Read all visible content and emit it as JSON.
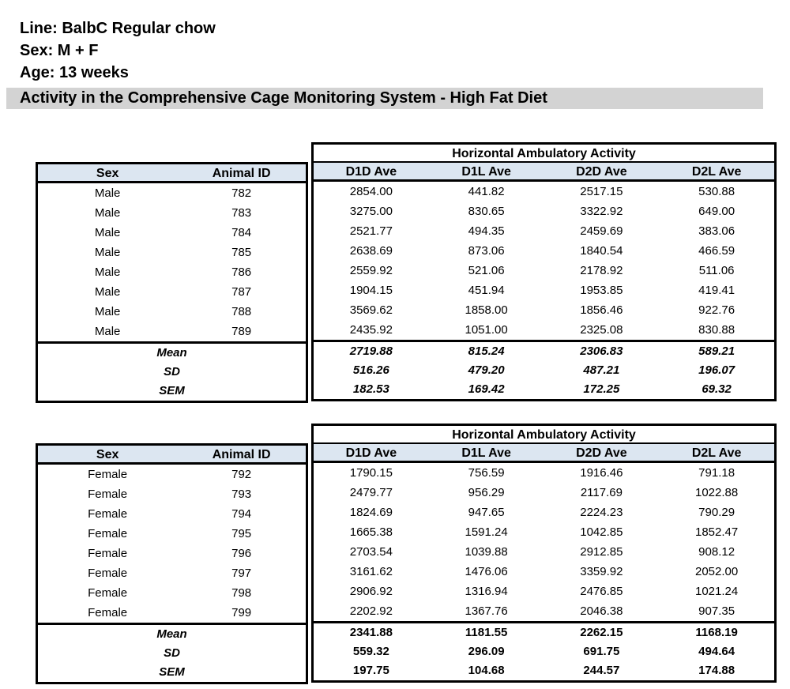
{
  "header": {
    "line": "Line: BalbC Regular chow",
    "sex": "Sex: M + F",
    "age": "Age: 13 weeks",
    "banner": "Activity in the Comprehensive Cage Monitoring System - High Fat Diet"
  },
  "colors": {
    "banner_bg": "#d3d3d3",
    "table_header_bg": "#dce6f1",
    "border": "#000000"
  },
  "tables": [
    {
      "group_header": "Horizontal Ambulatory Activity",
      "columns": [
        "Sex",
        "Animal ID",
        "D1D Ave",
        "D1L Ave",
        "D2D Ave",
        "D2L Ave"
      ],
      "rows": [
        [
          "Male",
          "782",
          "2854.00",
          "441.82",
          "2517.15",
          "530.88"
        ],
        [
          "Male",
          "783",
          "3275.00",
          "830.65",
          "3322.92",
          "649.00"
        ],
        [
          "Male",
          "784",
          "2521.77",
          "494.35",
          "2459.69",
          "383.06"
        ],
        [
          "Male",
          "785",
          "2638.69",
          "873.06",
          "1840.54",
          "466.59"
        ],
        [
          "Male",
          "786",
          "2559.92",
          "521.06",
          "2178.92",
          "511.06"
        ],
        [
          "Male",
          "787",
          "1904.15",
          "451.94",
          "1953.85",
          "419.41"
        ],
        [
          "Male",
          "788",
          "3569.62",
          "1858.00",
          "1856.46",
          "922.76"
        ],
        [
          "Male",
          "789",
          "2435.92",
          "1051.00",
          "2325.08",
          "830.88"
        ]
      ],
      "stats": [
        {
          "label": "Mean",
          "values": [
            "2719.88",
            "815.24",
            "2306.83",
            "589.21"
          ]
        },
        {
          "label": "SD",
          "values": [
            "516.26",
            "479.20",
            "487.21",
            "196.07"
          ]
        },
        {
          "label": "SEM",
          "values": [
            "182.53",
            "169.42",
            "172.25",
            "69.32"
          ]
        }
      ]
    },
    {
      "group_header": "Horizontal Ambulatory Activity",
      "columns": [
        "Sex",
        "Animal ID",
        "D1D Ave",
        "D1L Ave",
        "D2D Ave",
        "D2L Ave"
      ],
      "rows": [
        [
          "Female",
          "792",
          "1790.15",
          "756.59",
          "1916.46",
          "791.18"
        ],
        [
          "Female",
          "793",
          "2479.77",
          "956.29",
          "2117.69",
          "1022.88"
        ],
        [
          "Female",
          "794",
          "1824.69",
          "947.65",
          "2224.23",
          "790.29"
        ],
        [
          "Female",
          "795",
          "1665.38",
          "1591.24",
          "1042.85",
          "1852.47"
        ],
        [
          "Female",
          "796",
          "2703.54",
          "1039.88",
          "2912.85",
          "908.12"
        ],
        [
          "Female",
          "797",
          "3161.62",
          "1476.06",
          "3359.92",
          "2052.00"
        ],
        [
          "Female",
          "798",
          "2906.92",
          "1316.94",
          "2476.85",
          "1021.24"
        ],
        [
          "Female",
          "799",
          "2202.92",
          "1367.76",
          "2046.38",
          "907.35"
        ]
      ],
      "stats": [
        {
          "label": "Mean",
          "values": [
            "2341.88",
            "1181.55",
            "2262.15",
            "1168.19"
          ]
        },
        {
          "label": "SD",
          "values": [
            "559.32",
            "296.09",
            "691.75",
            "494.64"
          ]
        },
        {
          "label": "SEM",
          "values": [
            "197.75",
            "104.68",
            "244.57",
            "174.88"
          ]
        }
      ]
    }
  ]
}
